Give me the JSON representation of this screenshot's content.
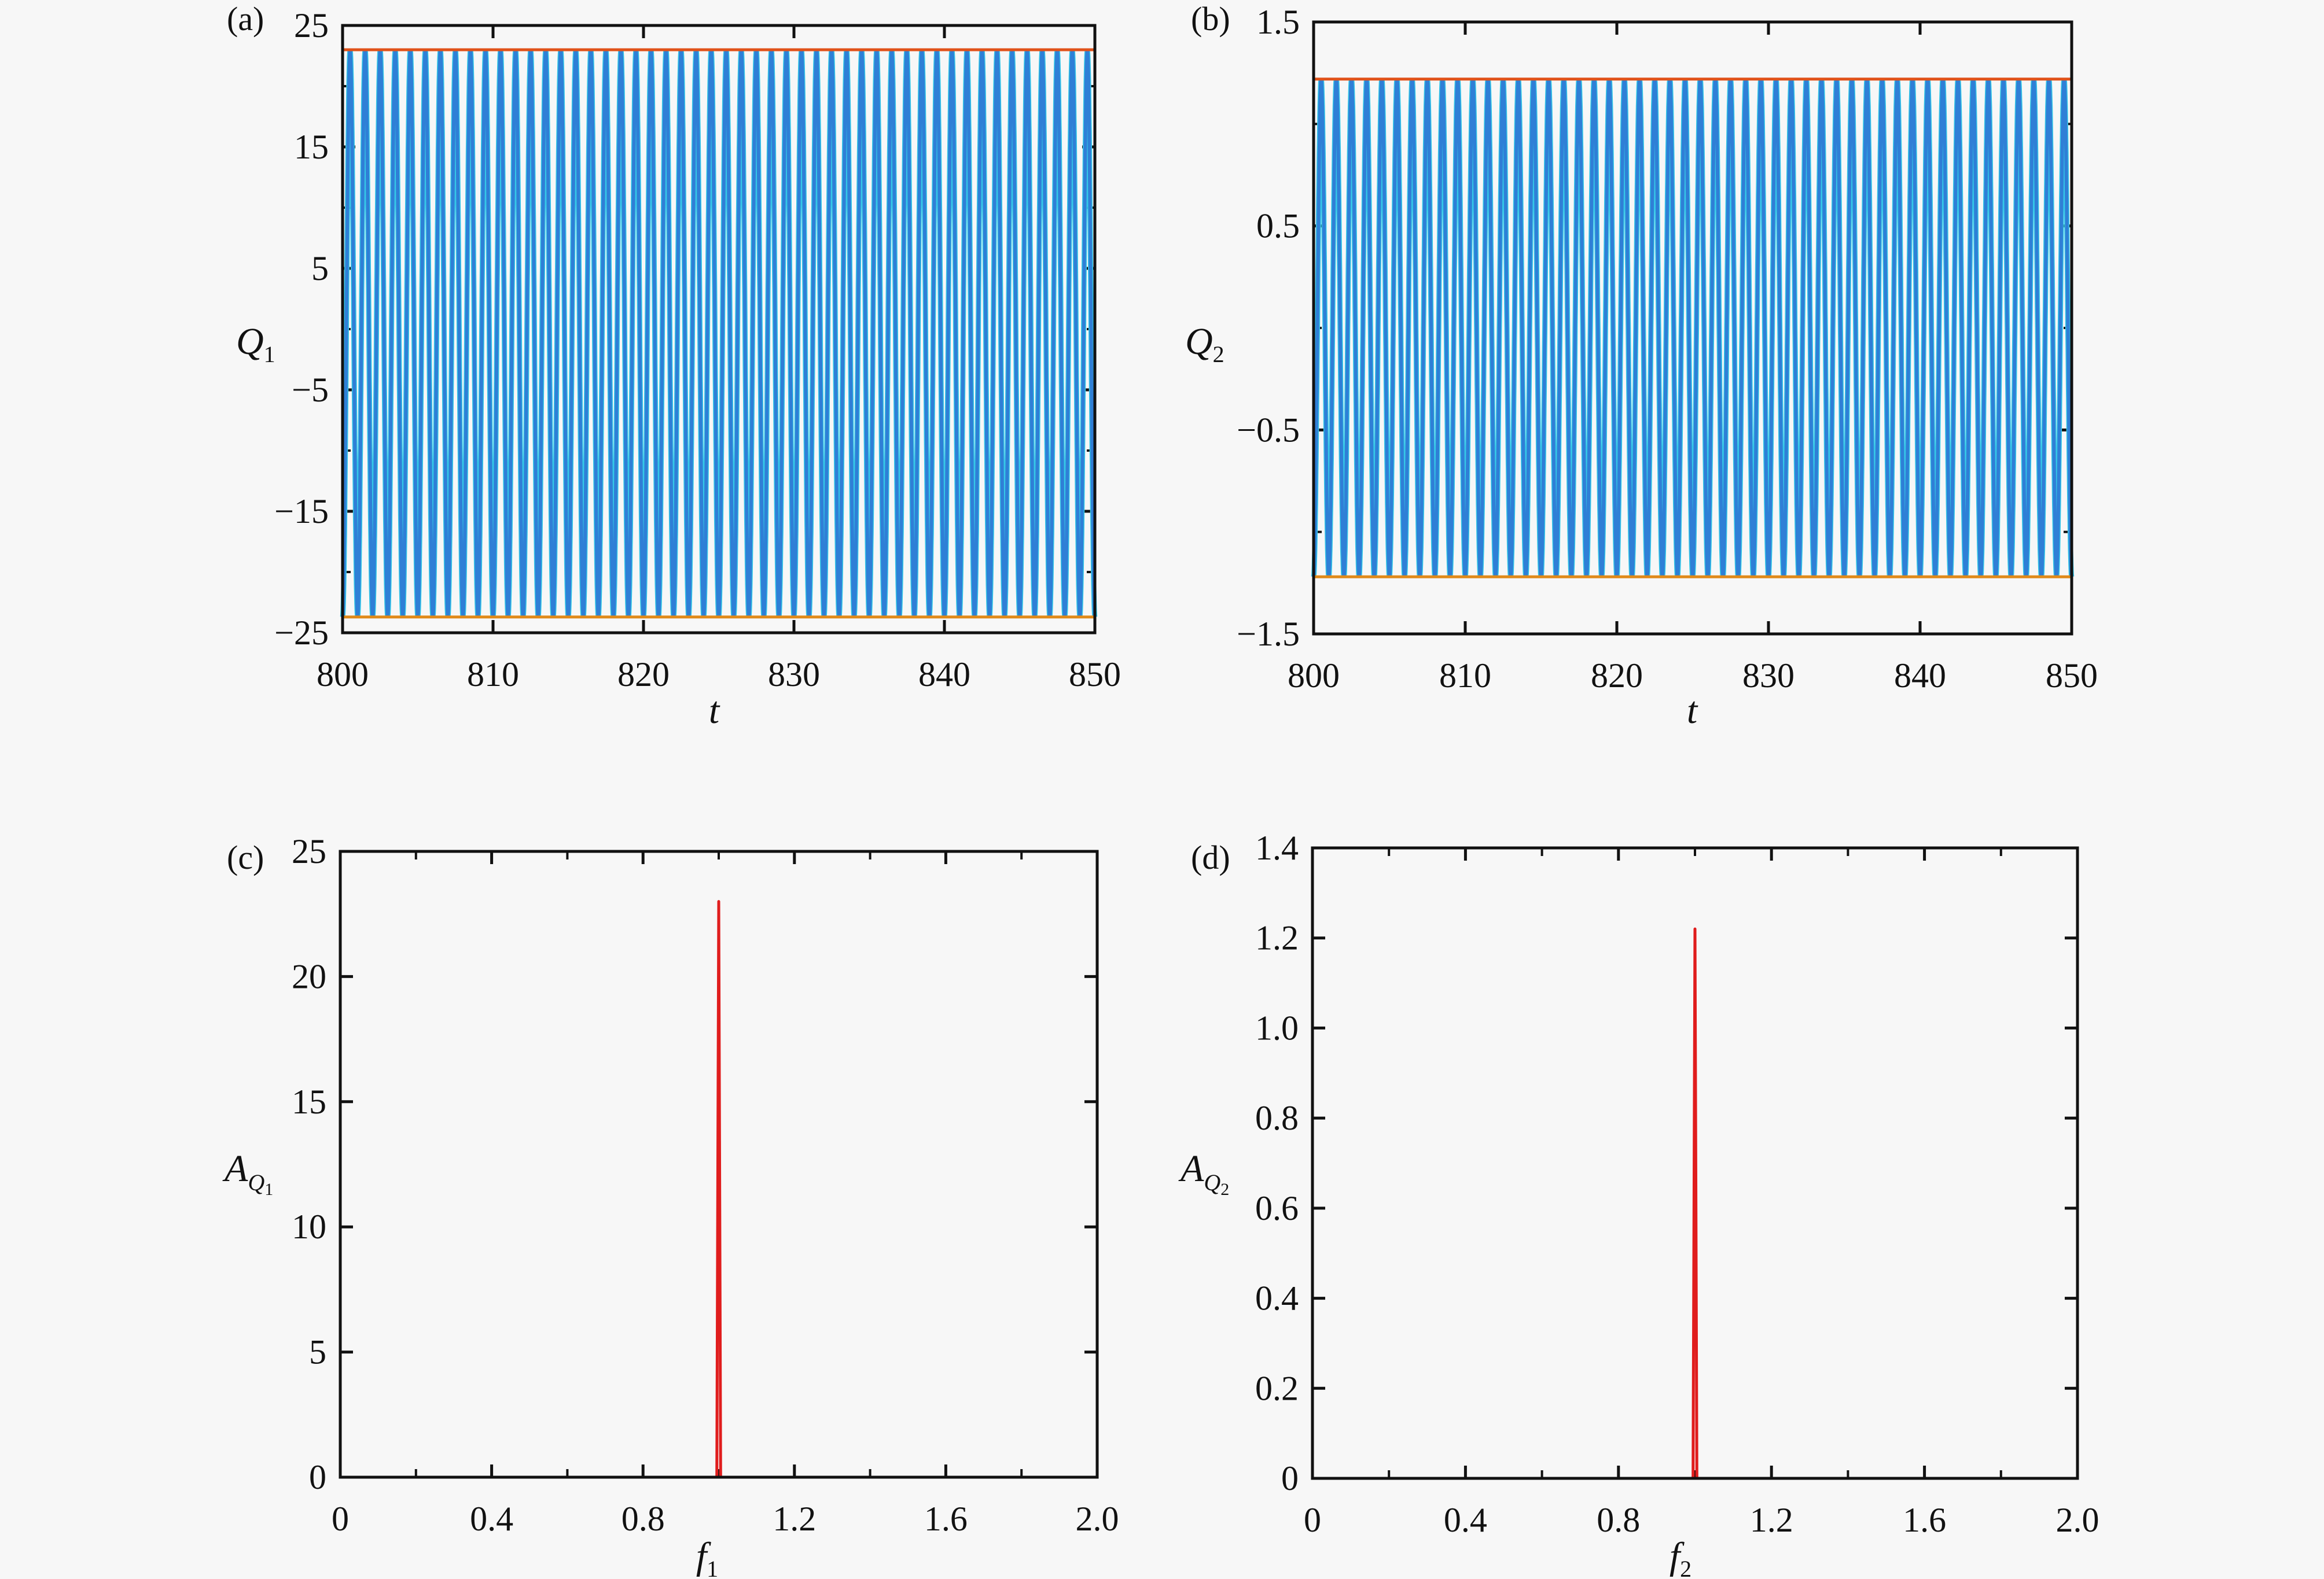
{
  "colors": {
    "background": "#f7f7f7",
    "signal": "#2f7fd6",
    "signal_highlight": "#35c8e8",
    "envelope_max": "#e0521a",
    "envelope_min": "#e08a1a",
    "spectrum": "#e01d1d",
    "axis": "#111111"
  },
  "chart_data": [
    {
      "id": "a",
      "panel_label": "(a)",
      "type": "line",
      "x_tick_labels": [
        "800",
        "810",
        "820",
        "830",
        "840",
        "850"
      ],
      "y_tick_labels": [
        "25",
        "15",
        "5",
        "−5",
        "−15",
        "−25"
      ],
      "xlabel": "t",
      "ylabel": "Q",
      "ylabel_sub": "1",
      "xlim": [
        800,
        850
      ],
      "ylim": [
        -25,
        25
      ],
      "xticks": [
        800,
        810,
        820,
        830,
        840,
        850
      ],
      "yticks": [
        25,
        15,
        5,
        -5,
        -15,
        -25
      ],
      "minor_yticks": [
        20,
        10,
        0,
        -10,
        -20
      ],
      "signal": {
        "amplitude_max": 23.0,
        "amplitude_min": -23.7,
        "frequency": 1.0
      },
      "envelope": {
        "max": 23.0,
        "min": -23.7
      },
      "grid": false
    },
    {
      "id": "b",
      "panel_label": "(b)",
      "type": "line",
      "x_tick_labels": [
        "800",
        "810",
        "820",
        "830",
        "840",
        "850"
      ],
      "y_tick_labels": [
        "1.5",
        "0.5",
        "−0.5",
        "−1.5"
      ],
      "xlabel": "t",
      "ylabel": "Q",
      "ylabel_sub": "2",
      "xlim": [
        800,
        850
      ],
      "ylim": [
        -1.5,
        1.5
      ],
      "xticks": [
        800,
        810,
        820,
        830,
        840,
        850
      ],
      "yticks": [
        1.5,
        0.5,
        -0.5,
        -1.5
      ],
      "minor_yticks": [
        1.0,
        0.0,
        -1.0
      ],
      "signal": {
        "amplitude_max": 1.22,
        "amplitude_min": -1.22,
        "frequency": 1.0
      },
      "envelope": {
        "max": 1.22,
        "min": -1.22
      },
      "grid": false
    },
    {
      "id": "c",
      "panel_label": "(c)",
      "type": "line",
      "x_tick_labels": [
        "0",
        "0.4",
        "0.8",
        "1.2",
        "1.6",
        "2.0"
      ],
      "y_tick_labels": [
        "25",
        "20",
        "15",
        "10",
        "5",
        "0"
      ],
      "xlabel": "f",
      "xlabel_sub": "1",
      "ylabel": "A",
      "ylabel_sub": "Q",
      "ylabel_subsub": "1",
      "xlim": [
        0,
        2.0
      ],
      "ylim": [
        0,
        25
      ],
      "xticks": [
        0,
        0.4,
        0.8,
        1.2,
        1.6,
        2.0
      ],
      "yticks": [
        25,
        20,
        15,
        10,
        5,
        0
      ],
      "minor_xticks": [
        0.2,
        0.6,
        1.0,
        1.4,
        1.8
      ],
      "spectrum": {
        "x": [
          0,
          0.995,
          1.0,
          1.005,
          2.0
        ],
        "y": [
          0,
          0,
          23.0,
          0,
          0
        ]
      },
      "grid": false
    },
    {
      "id": "d",
      "panel_label": "(d)",
      "type": "line",
      "x_tick_labels": [
        "0",
        "0.4",
        "0.8",
        "1.2",
        "1.6",
        "2.0"
      ],
      "y_tick_labels": [
        "1.4",
        "1.2",
        "1.0",
        "0.8",
        "0.6",
        "0.4",
        "0.2",
        "0"
      ],
      "xlabel": "f",
      "xlabel_sub": "2",
      "ylabel": "A",
      "ylabel_sub": "Q",
      "ylabel_subsub": "2",
      "xlim": [
        0,
        2.0
      ],
      "ylim": [
        0,
        1.4
      ],
      "xticks": [
        0,
        0.4,
        0.8,
        1.2,
        1.6,
        2.0
      ],
      "yticks": [
        1.4,
        1.2,
        1.0,
        0.8,
        0.6,
        0.4,
        0.2,
        0
      ],
      "minor_xticks": [
        0.2,
        0.6,
        1.0,
        1.4,
        1.8
      ],
      "spectrum": {
        "x": [
          0,
          0.995,
          1.0,
          1.005,
          2.0
        ],
        "y": [
          0,
          0,
          1.22,
          0,
          0
        ]
      },
      "grid": false
    }
  ]
}
